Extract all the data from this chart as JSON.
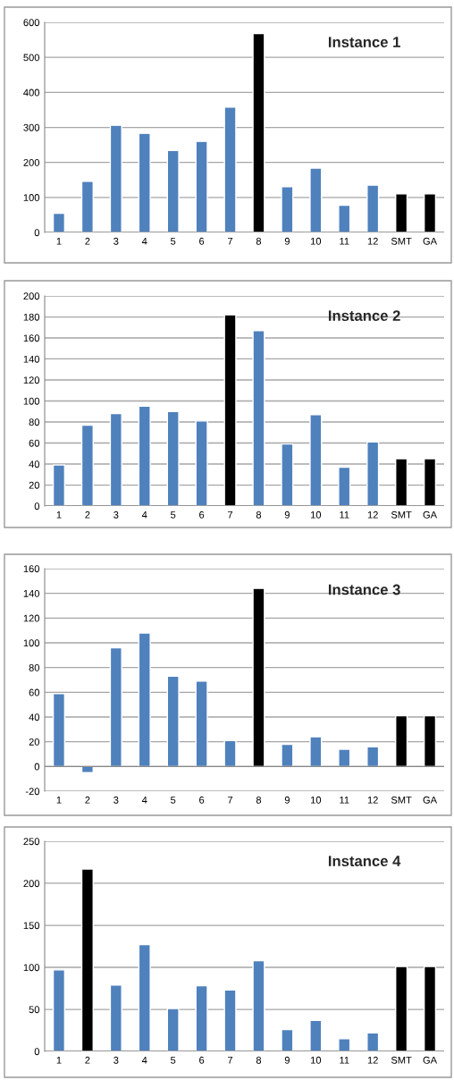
{
  "chart_data": [
    {
      "type": "bar",
      "title": "Instance 1",
      "categories": [
        "1",
        "2",
        "3",
        "4",
        "5",
        "6",
        "7",
        "8",
        "9",
        "10",
        "11",
        "12",
        "SMT",
        "GA"
      ],
      "values": [
        55,
        146,
        306,
        283,
        234,
        260,
        358,
        568,
        131,
        184,
        78,
        135,
        110,
        110
      ],
      "colors": [
        "#4f81bd",
        "#4f81bd",
        "#4f81bd",
        "#4f81bd",
        "#4f81bd",
        "#4f81bd",
        "#4f81bd",
        "#000000",
        "#4f81bd",
        "#4f81bd",
        "#4f81bd",
        "#4f81bd",
        "#000000",
        "#000000"
      ],
      "ylim": [
        0,
        600
      ],
      "yticks": [
        0,
        100,
        200,
        300,
        400,
        500,
        600
      ],
      "grid": "y"
    },
    {
      "type": "bar",
      "title": "Instance 2",
      "categories": [
        "1",
        "2",
        "3",
        "4",
        "5",
        "6",
        "7",
        "8",
        "9",
        "10",
        "11",
        "12",
        "SMT",
        "GA"
      ],
      "values": [
        39,
        77,
        88,
        95,
        90,
        81,
        182,
        167,
        59,
        87,
        37,
        61,
        45,
        45
      ],
      "colors": [
        "#4f81bd",
        "#4f81bd",
        "#4f81bd",
        "#4f81bd",
        "#4f81bd",
        "#4f81bd",
        "#000000",
        "#4f81bd",
        "#4f81bd",
        "#4f81bd",
        "#4f81bd",
        "#4f81bd",
        "#000000",
        "#000000"
      ],
      "ylim": [
        0,
        200
      ],
      "yticks": [
        0,
        20,
        40,
        60,
        80,
        100,
        120,
        140,
        160,
        180,
        200
      ],
      "grid": "y"
    },
    {
      "type": "bar",
      "title": "Instance 3",
      "categories": [
        "1",
        "2",
        "3",
        "4",
        "5",
        "6",
        "7",
        "8",
        "9",
        "10",
        "11",
        "12",
        "SMT",
        "GA"
      ],
      "values": [
        59,
        -5,
        96,
        108,
        73,
        69,
        21,
        144,
        18,
        24,
        14,
        16,
        41,
        41
      ],
      "colors": [
        "#4f81bd",
        "#4f81bd",
        "#4f81bd",
        "#4f81bd",
        "#4f81bd",
        "#4f81bd",
        "#4f81bd",
        "#000000",
        "#4f81bd",
        "#4f81bd",
        "#4f81bd",
        "#4f81bd",
        "#000000",
        "#000000"
      ],
      "ylim": [
        -20,
        160
      ],
      "yticks": [
        -20,
        0,
        20,
        40,
        60,
        80,
        100,
        120,
        140,
        160
      ],
      "grid": "y"
    },
    {
      "type": "bar",
      "title": "Instance 4",
      "categories": [
        "1",
        "2",
        "3",
        "4",
        "5",
        "6",
        "7",
        "8",
        "9",
        "10",
        "11",
        "12",
        "SMT",
        "GA"
      ],
      "values": [
        97,
        217,
        79,
        127,
        51,
        78,
        73,
        108,
        26,
        37,
        15,
        22,
        101,
        101
      ],
      "colors": [
        "#4f81bd",
        "#000000",
        "#4f81bd",
        "#4f81bd",
        "#4f81bd",
        "#4f81bd",
        "#4f81bd",
        "#4f81bd",
        "#4f81bd",
        "#4f81bd",
        "#4f81bd",
        "#4f81bd",
        "#000000",
        "#000000"
      ],
      "ylim": [
        0,
        250
      ],
      "yticks": [
        0,
        50,
        100,
        150,
        200,
        250
      ],
      "grid": "y"
    }
  ]
}
